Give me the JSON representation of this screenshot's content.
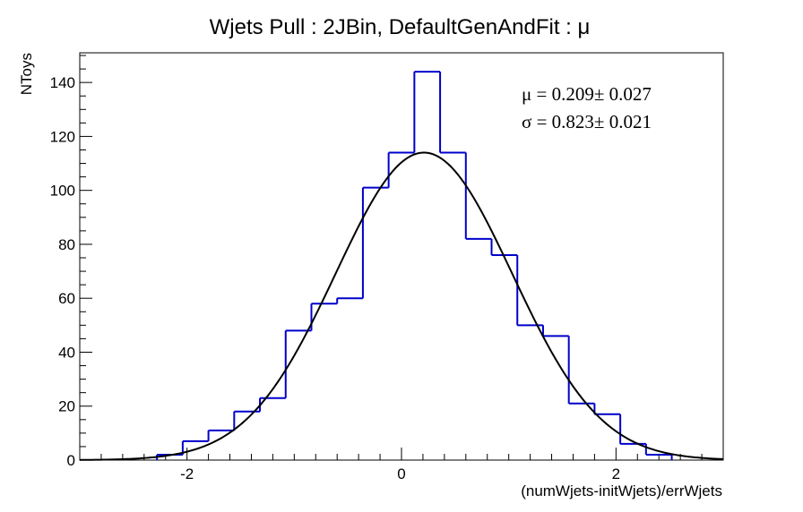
{
  "chart_data": {
    "type": "histogram",
    "title": "Wjets Pull : 2JBin, DefaultGenAndFit : μ",
    "xlabel": "(numWjets-initWjets)/errWjets",
    "ylabel": "NToys",
    "xlim": [
      -3,
      3
    ],
    "ylim": [
      0,
      151
    ],
    "x_ticks": [
      -2,
      0,
      2
    ],
    "y_ticks": [
      0,
      20,
      40,
      60,
      80,
      100,
      120,
      140
    ],
    "bin_width": 0.24,
    "bin_edges": [
      -2.28,
      -2.04,
      -1.8,
      -1.56,
      -1.32,
      -1.08,
      -0.84,
      -0.6,
      -0.36,
      -0.12,
      0.12,
      0.36,
      0.6,
      0.84,
      1.08,
      1.32,
      1.56,
      1.8,
      2.04,
      2.28,
      2.52
    ],
    "counts": [
      2,
      7,
      11,
      18,
      23,
      48,
      58,
      60,
      101,
      114,
      144,
      114,
      82,
      76,
      50,
      46,
      21,
      17,
      6,
      2
    ],
    "histogram_color": "#0000cc",
    "fit": {
      "function": "gaussian",
      "amplitude": 114,
      "mean": 0.209,
      "sigma": 0.823,
      "color": "#000000"
    },
    "stats": {
      "mu_text": "μ =  0.209± 0.027",
      "sigma_text": "σ =  0.823± 0.021"
    }
  }
}
